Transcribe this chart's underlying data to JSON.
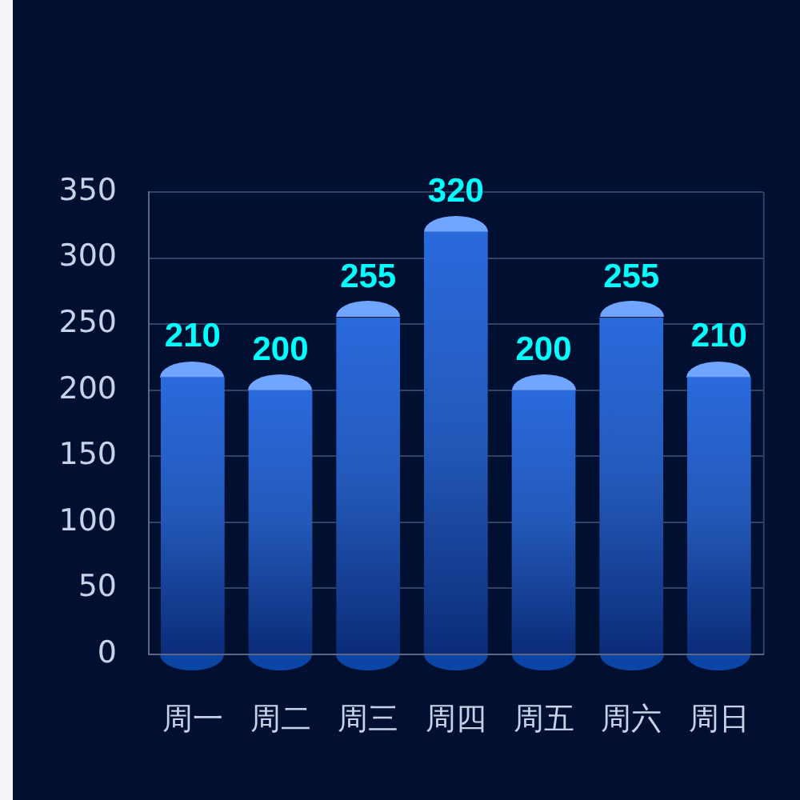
{
  "chart_data": {
    "type": "bar",
    "categories": [
      "周一",
      "周二",
      "周三",
      "周四",
      "周五",
      "周六",
      "周日"
    ],
    "values": [
      210,
      200,
      255,
      320,
      200,
      255,
      210
    ],
    "color": "#2358b8",
    "ylim": [
      0,
      350
    ],
    "yticks": [
      0,
      50,
      100,
      150,
      200,
      250,
      300,
      350
    ],
    "grid": "y",
    "data_labels": true
  }
}
